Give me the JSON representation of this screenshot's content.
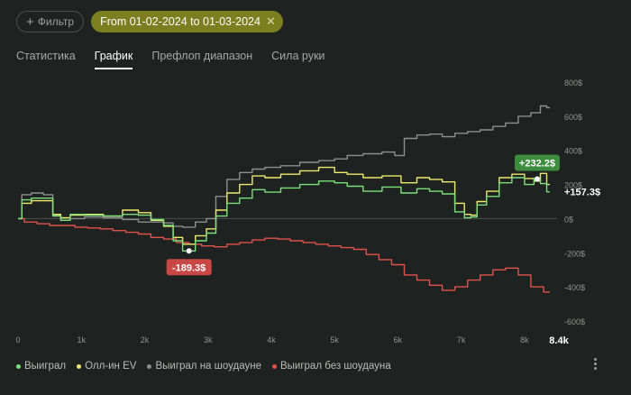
{
  "toolbar": {
    "filter_label": "Фильтр",
    "date_chip_label": "From 01-02-2024 to 01-03-2024"
  },
  "tabs": [
    {
      "label": "Статистика",
      "active": false
    },
    {
      "label": "График",
      "active": true
    },
    {
      "label": "Префлоп диапазон",
      "active": false
    },
    {
      "label": "Сила руки",
      "active": false
    }
  ],
  "chart_data": {
    "type": "line",
    "title": "",
    "xlabel": "",
    "ylabel": "",
    "x_ticks": [
      "0",
      "1k",
      "2k",
      "3k",
      "4k",
      "5k",
      "6k",
      "7k",
      "8k"
    ],
    "x_end_label": "8.4k",
    "y_ticks": [
      "800$",
      "600$",
      "400$",
      "200$",
      "0$",
      "-200$",
      "-400$",
      "-600$"
    ],
    "xlim": [
      0,
      8400
    ],
    "ylim": [
      -600,
      800
    ],
    "grid": {
      "zero_line": true
    },
    "colors": {
      "won": "#7be07a",
      "allin_ev": "#eeea6c",
      "showdown": "#8c8f8e",
      "non_showdown": "#e0524a"
    },
    "series": [
      {
        "name": "Выиграл",
        "color": "#7be07a",
        "x": [
          0,
          120,
          300,
          500,
          600,
          750,
          900,
          1200,
          1500,
          1800,
          2000,
          2200,
          2400,
          2500,
          2700,
          2900,
          3050,
          3200,
          3400,
          3600,
          3800,
          4000,
          4300,
          4600,
          4900,
          5100,
          5300,
          5600,
          5900,
          6200,
          6400,
          6600,
          6800,
          7000,
          7100,
          7200,
          7300,
          7500,
          7700,
          7900,
          8100,
          8200,
          8300,
          8400
        ],
        "y": [
          0,
          110,
          120,
          120,
          15,
          -10,
          25,
          20,
          15,
          25,
          20,
          -5,
          -40,
          -130,
          -189.3,
          -130,
          -85,
          15,
          90,
          120,
          170,
          155,
          180,
          200,
          220,
          210,
          190,
          160,
          185,
          150,
          175,
          160,
          145,
          40,
          5,
          10,
          80,
          130,
          210,
          240,
          200,
          232.2,
          205,
          157.3
        ]
      },
      {
        "name": "Олл-ин EV",
        "color": "#eeea6c",
        "x": [
          0,
          120,
          300,
          500,
          600,
          750,
          900,
          1200,
          1500,
          1800,
          2000,
          2200,
          2400,
          2500,
          2700,
          2900,
          3050,
          3200,
          3400,
          3600,
          3800,
          4000,
          4300,
          4600,
          4900,
          5100,
          5300,
          5600,
          5900,
          6200,
          6400,
          6600,
          6800,
          7000,
          7100,
          7200,
          7300,
          7500,
          7700,
          7900,
          8100,
          8200,
          8300,
          8400
        ],
        "y": [
          0,
          90,
          105,
          105,
          25,
          5,
          20,
          25,
          15,
          50,
          35,
          -10,
          -45,
          -110,
          -150,
          -100,
          -60,
          50,
          150,
          200,
          250,
          240,
          260,
          280,
          300,
          270,
          260,
          240,
          250,
          210,
          240,
          230,
          215,
          90,
          25,
          20,
          100,
          160,
          240,
          260,
          235,
          220,
          265,
          200
        ]
      },
      {
        "name": "Выиграл на шоудауне",
        "color": "#8c8f8e",
        "x": [
          0,
          120,
          300,
          500,
          600,
          750,
          900,
          1200,
          1500,
          1800,
          2000,
          2200,
          2400,
          2500,
          2700,
          2900,
          3050,
          3200,
          3400,
          3600,
          3800,
          4000,
          4300,
          4600,
          4900,
          5100,
          5300,
          5600,
          5900,
          6000,
          6200,
          6400,
          6600,
          6800,
          7000,
          7200,
          7400,
          7600,
          7800,
          8000,
          8200,
          8300,
          8400
        ],
        "y": [
          0,
          140,
          150,
          140,
          20,
          -10,
          0,
          10,
          5,
          -5,
          -20,
          -20,
          -25,
          -45,
          -50,
          -20,
          0,
          130,
          230,
          270,
          290,
          300,
          310,
          330,
          340,
          350,
          370,
          380,
          390,
          370,
          470,
          490,
          495,
          480,
          500,
          510,
          520,
          540,
          560,
          600,
          620,
          660,
          650
        ]
      },
      {
        "name": "Выиграл без шоудауна",
        "color": "#e0524a",
        "x": [
          0,
          200,
          400,
          600,
          800,
          1000,
          1200,
          1400,
          1600,
          1800,
          2000,
          2200,
          2400,
          2600,
          2800,
          3000,
          3200,
          3400,
          3600,
          3800,
          4000,
          4200,
          4400,
          4600,
          4800,
          5000,
          5200,
          5400,
          5600,
          5800,
          6000,
          6200,
          6400,
          6600,
          6800,
          7000,
          7200,
          7400,
          7600,
          7800,
          8000,
          8200,
          8400
        ],
        "y": [
          0,
          -20,
          -30,
          -40,
          -40,
          -50,
          -55,
          -60,
          -70,
          -80,
          -90,
          -110,
          -120,
          -140,
          -150,
          -160,
          -165,
          -150,
          -140,
          -125,
          -115,
          -120,
          -130,
          -140,
          -150,
          -160,
          -170,
          -180,
          -210,
          -240,
          -270,
          -330,
          -360,
          -390,
          -420,
          -400,
          -360,
          -330,
          -300,
          -290,
          -330,
          -400,
          -430
        ]
      }
    ],
    "annotations": [
      {
        "label": "-189.3$",
        "x": 2700,
        "y": -189.3,
        "color": "#c94744",
        "position": "below"
      },
      {
        "label": "+232.2$",
        "x": 8200,
        "y": 232.2,
        "color": "#3d8b3d",
        "position": "above"
      },
      {
        "label": "+157.3$",
        "x": 8400,
        "y": 157.3,
        "position": "right"
      }
    ]
  }
}
